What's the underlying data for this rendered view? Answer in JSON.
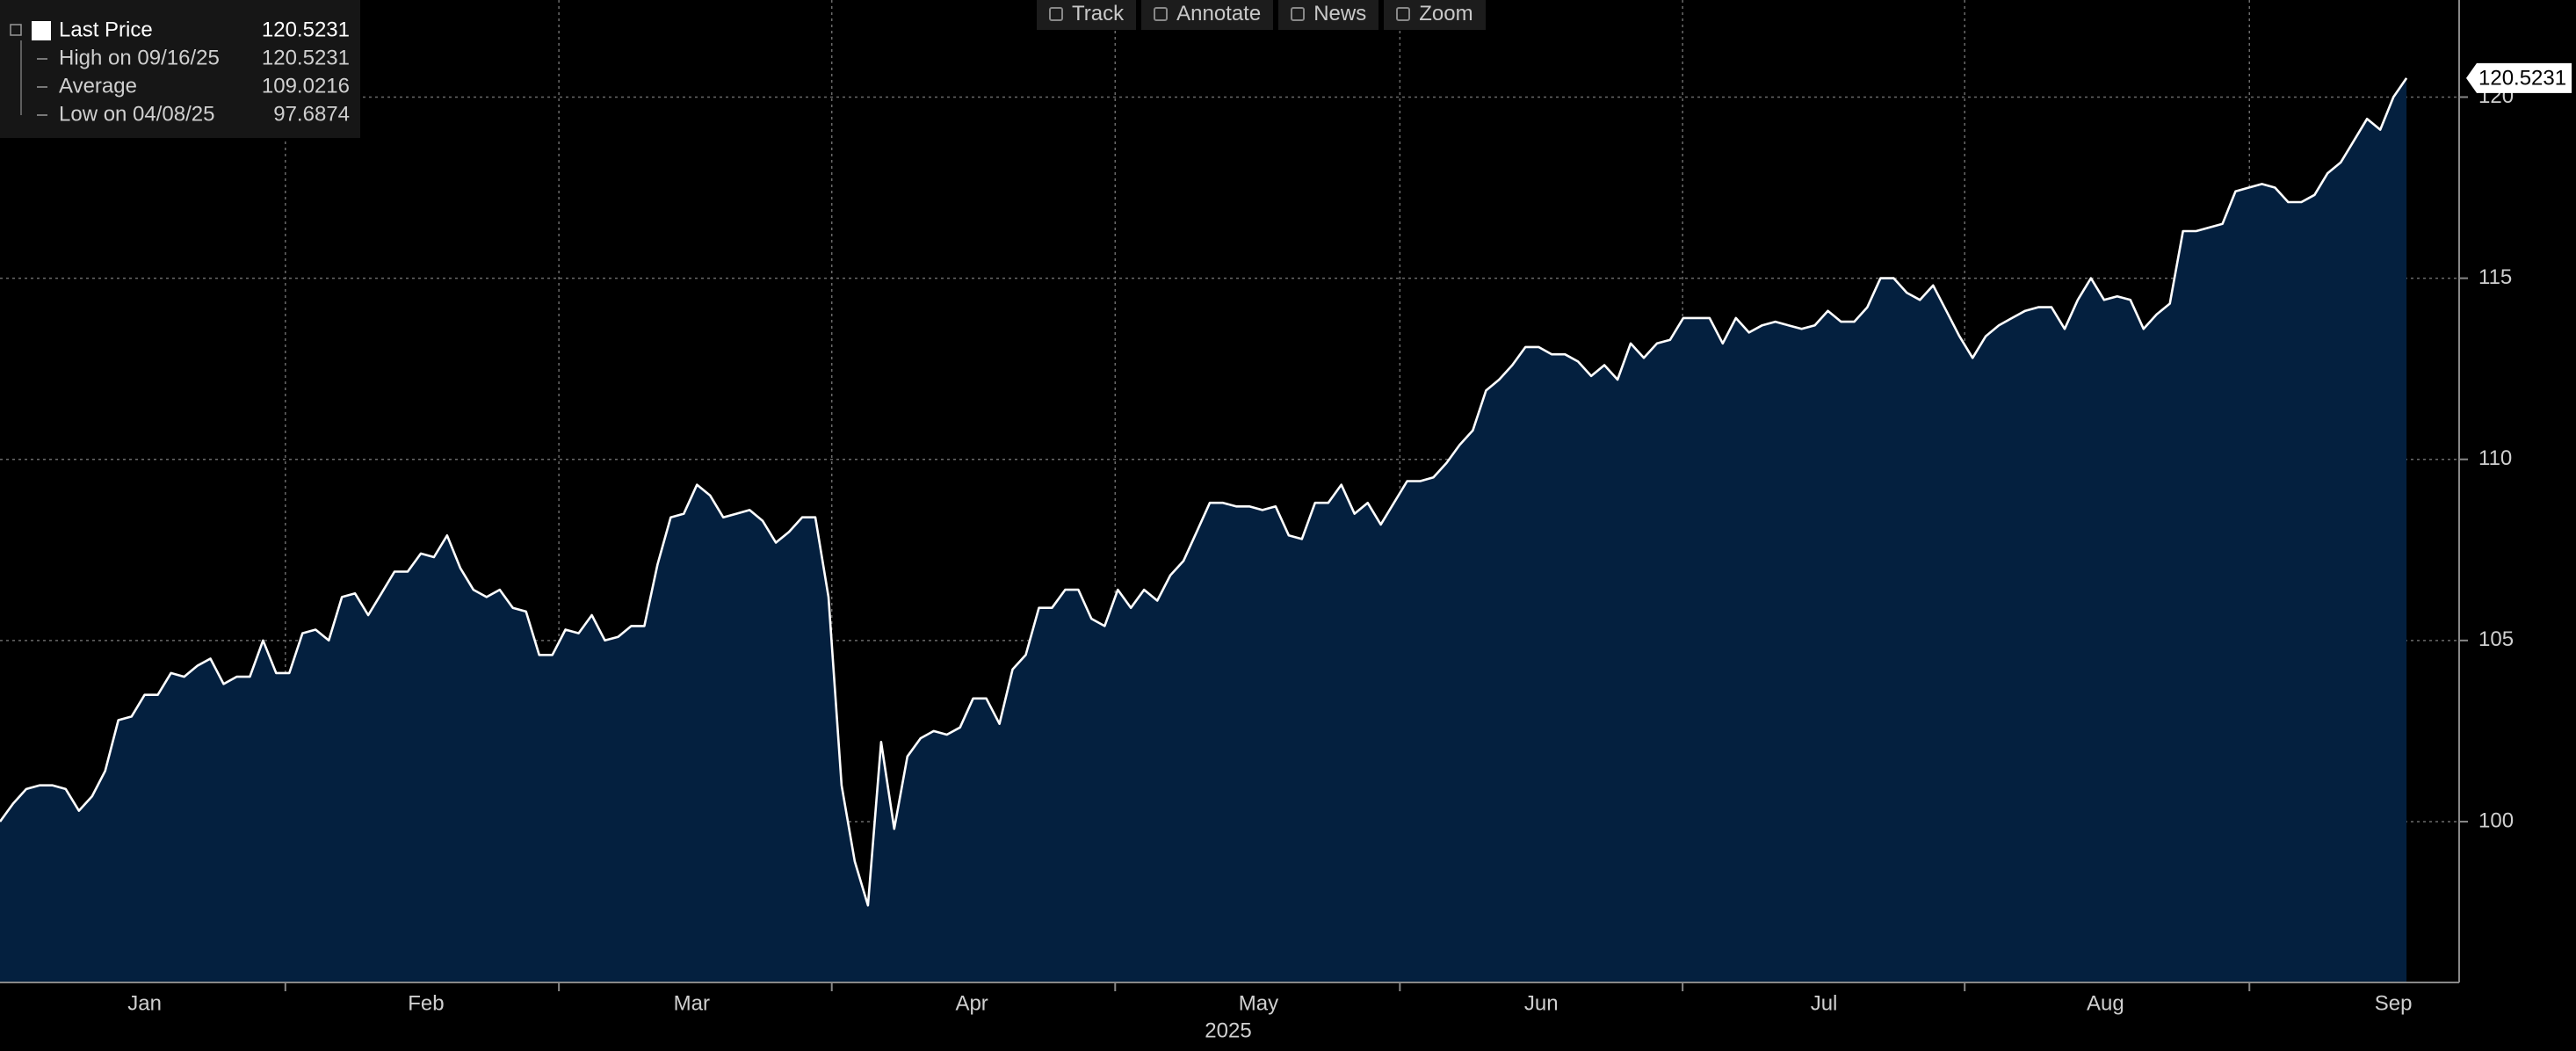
{
  "toolbar": [
    "Track",
    "Annotate",
    "News",
    "Zoom"
  ],
  "chart_data": {
    "type": "area",
    "series": [
      {
        "name": "Last Price",
        "color": "#ffffff",
        "fill": "#04203f",
        "values": [
          100.0,
          100.5,
          100.9,
          101.0,
          101.0,
          100.9,
          100.3,
          100.7,
          101.4,
          102.8,
          102.9,
          103.5,
          103.5,
          104.1,
          104.0,
          104.3,
          104.5,
          103.8,
          104.0,
          104.0,
          105.0,
          104.1,
          104.1,
          105.2,
          105.3,
          105.0,
          106.2,
          106.3,
          105.7,
          106.3,
          106.9,
          106.9,
          107.4,
          107.3,
          107.9,
          107.0,
          106.4,
          106.2,
          106.4,
          105.9,
          105.8,
          104.6,
          104.6,
          105.3,
          105.2,
          105.7,
          105.0,
          105.1,
          105.4,
          105.4,
          107.1,
          108.4,
          108.5,
          109.3,
          109.0,
          108.4,
          108.5,
          108.6,
          108.3,
          107.7,
          108.0,
          108.4,
          108.4,
          106.2,
          101.0,
          98.9,
          97.6874,
          102.2,
          99.8,
          101.8,
          102.3,
          102.5,
          102.4,
          102.6,
          103.4,
          103.4,
          102.7,
          104.2,
          104.6,
          105.9,
          105.9,
          106.4,
          106.4,
          105.6,
          105.4,
          106.4,
          105.9,
          106.4,
          106.1,
          106.8,
          107.2,
          108.0,
          108.8,
          108.8,
          108.7,
          108.7,
          108.6,
          108.7,
          107.9,
          107.8,
          108.8,
          108.8,
          109.3,
          108.5,
          108.8,
          108.2,
          108.8,
          109.4,
          109.4,
          109.5,
          109.9,
          110.4,
          110.8,
          111.9,
          112.2,
          112.6,
          113.1,
          113.1,
          112.9,
          112.9,
          112.7,
          112.3,
          112.6,
          112.2,
          113.2,
          112.8,
          113.2,
          113.3,
          113.9,
          113.9,
          113.9,
          113.2,
          113.9,
          113.5,
          113.7,
          113.8,
          113.7,
          113.6,
          113.7,
          114.1,
          113.8,
          113.8,
          114.2,
          115.0,
          115.0,
          114.6,
          114.4,
          114.8,
          114.1,
          113.4,
          112.8,
          113.4,
          113.7,
          113.9,
          114.1,
          114.2,
          114.2,
          113.6,
          114.4,
          115.0,
          114.4,
          114.5,
          114.4,
          113.6,
          114.0,
          114.3,
          116.3,
          116.3,
          116.4,
          116.5,
          117.4,
          117.5,
          117.6,
          117.5,
          117.1,
          117.1,
          117.3,
          117.9,
          118.2,
          118.8,
          119.4,
          119.1,
          120.0,
          120.5231
        ]
      }
    ],
    "stats": [
      {
        "label": "High on 09/16/25",
        "value": 120.5231
      },
      {
        "label": "Average",
        "value": 109.0216
      },
      {
        "label": "Low on 04/08/25",
        "value": 97.6874
      }
    ],
    "xlim": [
      0,
      187
    ],
    "xticks": [
      {
        "value": 11.0,
        "label": "Jan"
      },
      {
        "value": 32.4,
        "label": "Feb"
      },
      {
        "value": 52.6,
        "label": "Mar"
      },
      {
        "value": 73.9,
        "label": "Apr"
      },
      {
        "value": 95.7,
        "label": "May"
      },
      {
        "value": 117.2,
        "label": "Jun"
      },
      {
        "value": 138.7,
        "label": "Jul"
      },
      {
        "value": 160.1,
        "label": "Aug"
      },
      {
        "value": 182.0,
        "label": "Sep"
      }
    ],
    "xlabel": "2025",
    "ylim": [
      95.56,
      122.68
    ],
    "yticks": [
      100,
      105,
      110,
      115,
      120
    ],
    "grid": true
  }
}
